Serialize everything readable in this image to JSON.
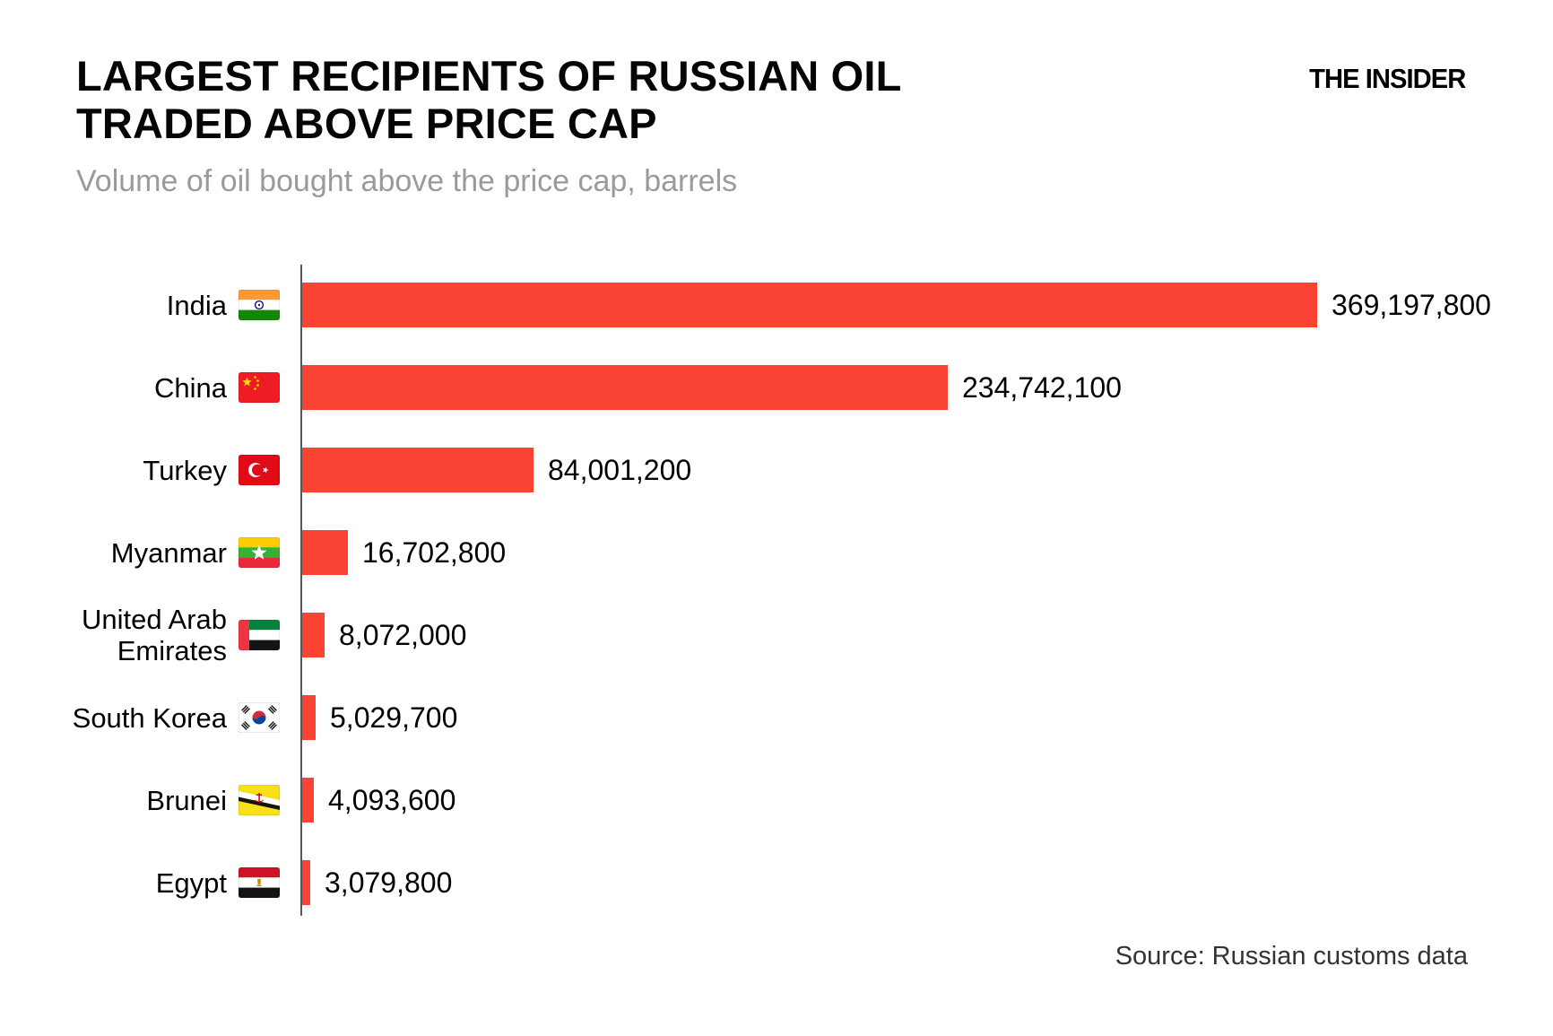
{
  "header": {
    "title_line1": "LARGEST RECIPIENTS OF RUSSIAN OIL",
    "title_line2": "TRADED ABOVE PRICE CAP",
    "subtitle": "Volume of oil bought above the price cap, barrels",
    "brand": "THE INSIDER"
  },
  "footer": {
    "source": "Source: Russian customs data"
  },
  "colors": {
    "bar": "#fa4332",
    "title": "#050505",
    "subtitle": "#9a9a9a",
    "axis": "#595959",
    "source_text": "#333333",
    "background": "#ffffff"
  },
  "chart_data": {
    "type": "bar",
    "orientation": "horizontal",
    "title": "LARGEST RECIPIENTS OF RUSSIAN OIL TRADED ABOVE PRICE CAP",
    "subtitle": "Volume of oil bought above the price cap, barrels",
    "unit": "barrels",
    "xlim": [
      0,
      380000000
    ],
    "grid": false,
    "legend": "none",
    "categories": [
      "India",
      "China",
      "Turkey",
      "Myanmar",
      "United Arab Emirates",
      "South Korea",
      "Brunei",
      "Egypt"
    ],
    "values": [
      369197800,
      234742100,
      84001200,
      16702800,
      8072000,
      5029700,
      4093600,
      3079800
    ],
    "source": "Source: Russian customs data",
    "rows": [
      {
        "label_lines": [
          "India"
        ],
        "flag": "india",
        "flag_icon": "india-flag-icon",
        "value": 369197800,
        "value_label": "369,197,800"
      },
      {
        "label_lines": [
          "China"
        ],
        "flag": "china",
        "flag_icon": "china-flag-icon",
        "value": 234742100,
        "value_label": "234,742,100"
      },
      {
        "label_lines": [
          "Turkey"
        ],
        "flag": "turkey",
        "flag_icon": "turkey-flag-icon",
        "value": 84001200,
        "value_label": "84,001,200"
      },
      {
        "label_lines": [
          "Myanmar"
        ],
        "flag": "myanmar",
        "flag_icon": "myanmar-flag-icon",
        "value": 16702800,
        "value_label": "16,702,800"
      },
      {
        "label_lines": [
          "United Arab",
          "Emirates"
        ],
        "flag": "uae",
        "flag_icon": "uae-flag-icon",
        "value": 8072000,
        "value_label": "8,072,000"
      },
      {
        "label_lines": [
          "South Korea"
        ],
        "flag": "south-korea",
        "flag_icon": "south-korea-flag-icon",
        "value": 5029700,
        "value_label": "5,029,700"
      },
      {
        "label_lines": [
          "Brunei"
        ],
        "flag": "brunei",
        "flag_icon": "brunei-flag-icon",
        "value": 4093600,
        "value_label": "4,093,600"
      },
      {
        "label_lines": [
          "Egypt"
        ],
        "flag": "egypt",
        "flag_icon": "egypt-flag-icon",
        "value": 3079800,
        "value_label": "3,079,800"
      }
    ]
  }
}
